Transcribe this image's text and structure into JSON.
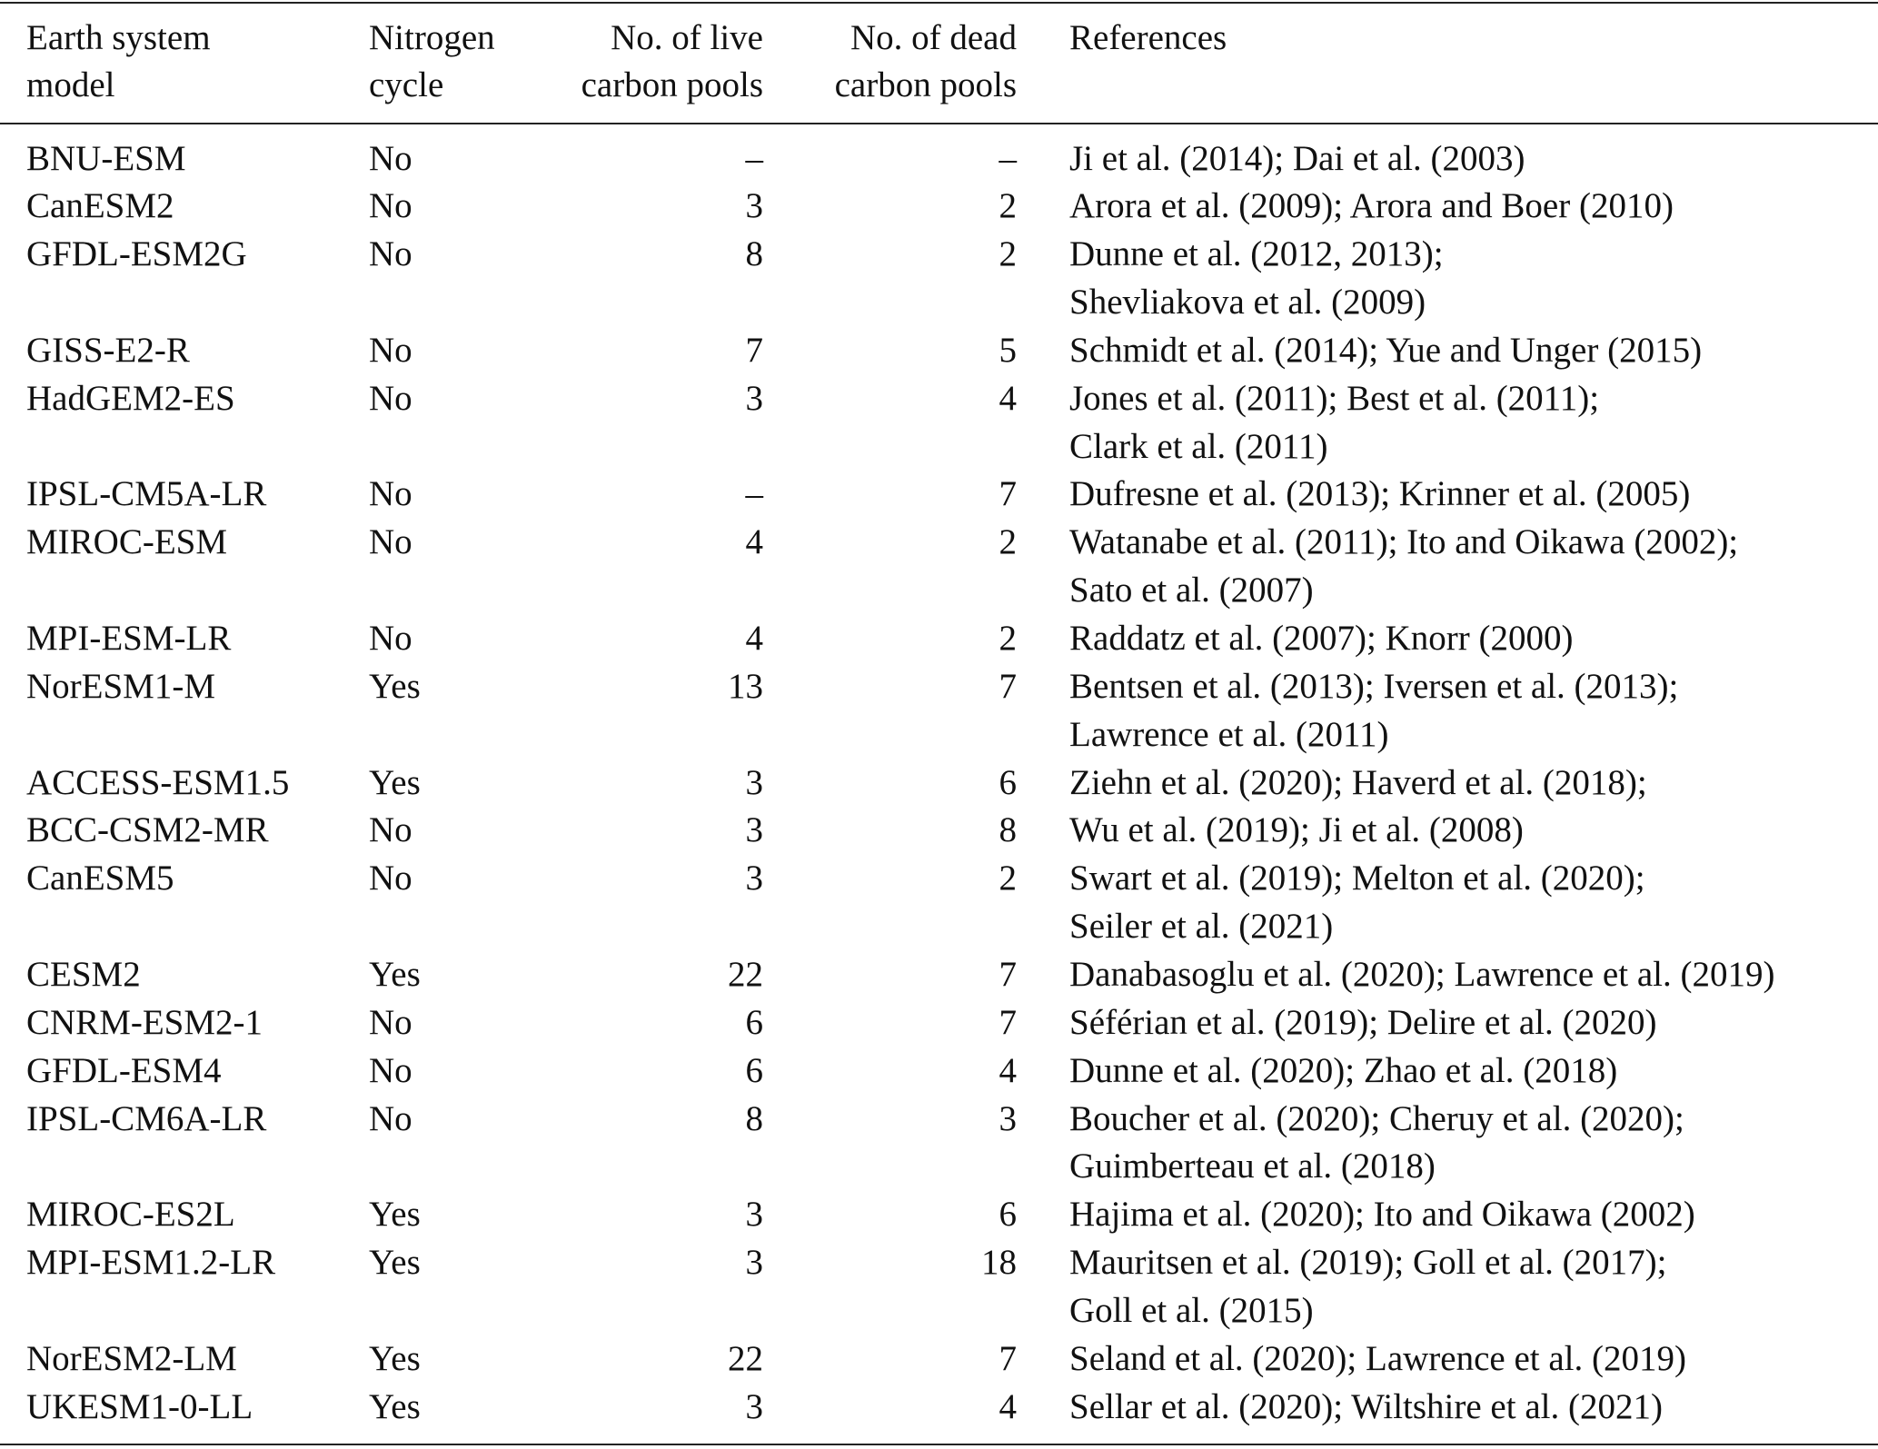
{
  "table": {
    "header": [
      [
        "Earth system",
        "model"
      ],
      [
        "Nitrogen",
        "cycle"
      ],
      [
        "No. of live",
        "carbon pools"
      ],
      [
        "No. of dead",
        "carbon pools"
      ],
      [
        "References"
      ]
    ],
    "rows": [
      [
        "BNU-ESM",
        "No",
        "–",
        "–",
        [
          "Ji et al. (2014); Dai et al. (2003)"
        ]
      ],
      [
        "CanESM2",
        "No",
        3,
        2,
        [
          "Arora et al. (2009); Arora and Boer (2010)"
        ]
      ],
      [
        "GFDL-ESM2G",
        "No",
        8,
        2,
        [
          "Dunne et al. (2012, 2013);",
          "Shevliakova et al. (2009)"
        ]
      ],
      [
        "GISS-E2-R",
        "No",
        7,
        5,
        [
          "Schmidt et al. (2014); Yue and Unger (2015)"
        ]
      ],
      [
        "HadGEM2-ES",
        "No",
        3,
        4,
        [
          "Jones et al. (2011); Best et al. (2011);",
          "Clark et al. (2011)"
        ]
      ],
      [
        "IPSL-CM5A-LR",
        "No",
        "–",
        7,
        [
          "Dufresne et al. (2013); Krinner et al. (2005)"
        ]
      ],
      [
        "MIROC-ESM",
        "No",
        4,
        2,
        [
          "Watanabe et al. (2011); Ito and Oikawa (2002);",
          "Sato et al. (2007)"
        ]
      ],
      [
        "MPI-ESM-LR",
        "No",
        4,
        2,
        [
          "Raddatz et al. (2007); Knorr (2000)"
        ]
      ],
      [
        "NorESM1-M",
        "Yes",
        13,
        7,
        [
          "Bentsen et al. (2013); Iversen et al. (2013);",
          "Lawrence et al. (2011)"
        ]
      ],
      [
        "ACCESS-ESM1.5",
        "Yes",
        3,
        6,
        [
          "Ziehn et al. (2020); Haverd et al. (2018);"
        ]
      ],
      [
        "BCC-CSM2-MR",
        "No",
        3,
        8,
        [
          "Wu et al. (2019); Ji et al. (2008)"
        ]
      ],
      [
        "CanESM5",
        "No",
        3,
        2,
        [
          "Swart et al. (2019); Melton et al. (2020);",
          "Seiler et al. (2021)"
        ]
      ],
      [
        "CESM2",
        "Yes",
        22,
        7,
        [
          "Danabasoglu et al. (2020); Lawrence et al. (2019)"
        ]
      ],
      [
        "CNRM-ESM2-1",
        "No",
        6,
        7,
        [
          "Séférian et al. (2019); Delire et al. (2020)"
        ]
      ],
      [
        "GFDL-ESM4",
        "No",
        6,
        4,
        [
          "Dunne et al. (2020); Zhao et al. (2018)"
        ]
      ],
      [
        "IPSL-CM6A-LR",
        "No",
        8,
        3,
        [
          "Boucher et al. (2020); Cheruy et al. (2020);",
          "Guimberteau et al. (2018)"
        ]
      ],
      [
        "MIROC-ES2L",
        "Yes",
        3,
        6,
        [
          "Hajima et al. (2020); Ito and Oikawa (2002)"
        ]
      ],
      [
        "MPI-ESM1.2-LR",
        "Yes",
        3,
        18,
        [
          "Mauritsen et al. (2019); Goll et al. (2017);",
          "Goll et al. (2015)"
        ]
      ],
      [
        "NorESM2-LM",
        "Yes",
        22,
        7,
        [
          "Seland et al. (2020); Lawrence et al. (2019)"
        ]
      ],
      [
        "UKESM1-0-LL",
        "Yes",
        3,
        4,
        [
          "Sellar et al. (2020); Wiltshire et al. (2021)"
        ]
      ]
    ]
  }
}
